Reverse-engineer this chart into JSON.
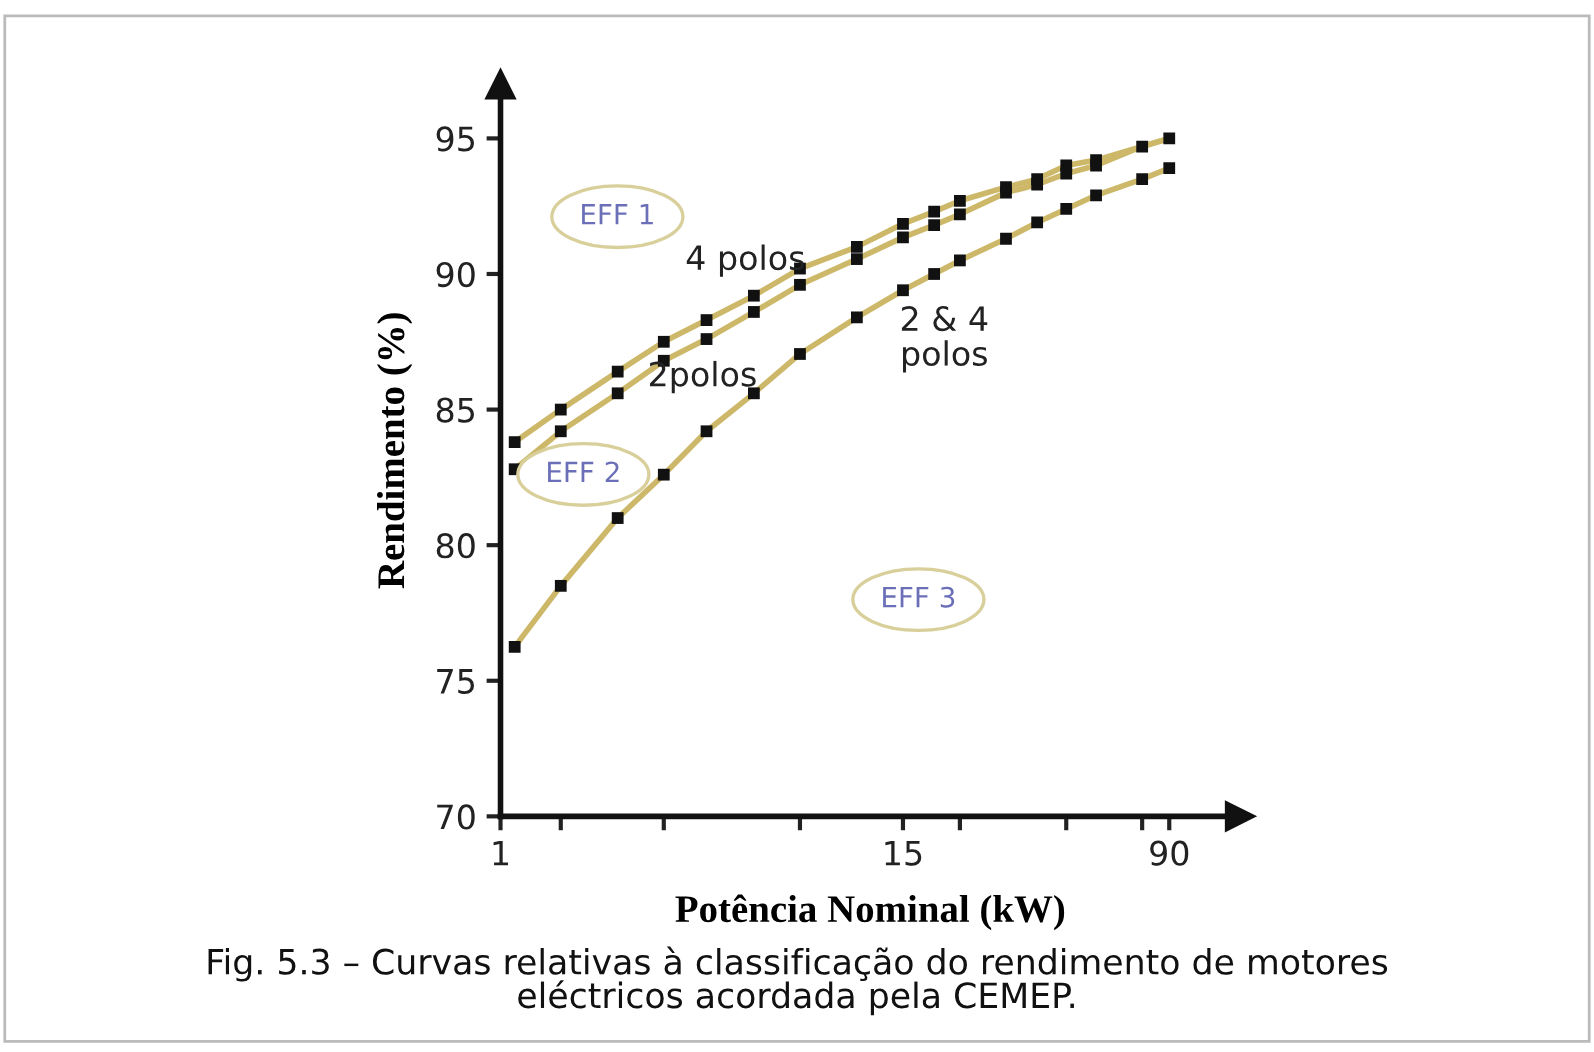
{
  "chart_data": {
    "type": "line",
    "xlabel": "Potência Nominal (kW)",
    "ylabel": "Rendimento (%)",
    "log": "x",
    "xlim": [
      1,
      145
    ],
    "ylim": [
      70,
      97
    ],
    "xticks": [
      1,
      {
        "value": 1.5,
        "label": null
      },
      {
        "value": 3,
        "label": null
      },
      {
        "value": 7.5,
        "label": null
      },
      15,
      {
        "value": 22,
        "label": null
      },
      {
        "value": 45,
        "label": null
      },
      {
        "value": 75,
        "label": null
      },
      90
    ],
    "yticks": [
      70,
      75,
      80,
      85,
      90,
      95
    ],
    "grid": false,
    "x": [
      1.1,
      1.5,
      2.2,
      3,
      4,
      5.5,
      7.5,
      11,
      15,
      18.5,
      22,
      30,
      37,
      45,
      55,
      75,
      90
    ],
    "series": [
      {
        "color": "#cdb86a",
        "marker": "none",
        "values": [
          83.8,
          85.0,
          86.4,
          87.5,
          88.3,
          89.2,
          90.2,
          91.0,
          91.85,
          92.3,
          92.7,
          93.2,
          93.5,
          94.0,
          94.2,
          94.7,
          95.0
        ]
      },
      {
        "color": "#cdb86a",
        "marker": "none",
        "values": [
          82.8,
          84.2,
          85.6,
          86.8,
          87.6,
          88.6,
          89.6,
          90.55,
          91.35,
          91.8,
          92.2,
          93.0,
          93.3,
          93.7,
          94.0,
          94.7,
          95.0
        ]
      },
      {
        "color": "#cdb86a",
        "marker": "none",
        "values": [
          76.25,
          78.5,
          81.0,
          82.6,
          84.2,
          85.6,
          87.05,
          88.4,
          89.4,
          90.0,
          90.5,
          91.3,
          91.9,
          92.4,
          92.9,
          93.5,
          93.9
        ]
      },
      {
        "type": "scatter",
        "color": "#111111",
        "marker": "square",
        "values": [
          83.8,
          85.0,
          86.4,
          87.5,
          88.3,
          89.2,
          90.2,
          91.0,
          91.85,
          92.3,
          92.7,
          93.2,
          93.5,
          94.0,
          94.2,
          94.7,
          95.0
        ]
      },
      {
        "type": "scatter",
        "color": "#111111",
        "marker": "square",
        "values": [
          82.8,
          84.2,
          85.6,
          86.8,
          87.6,
          88.6,
          89.6,
          90.55,
          91.35,
          91.8,
          92.2,
          93.0,
          93.3,
          93.7,
          94.0,
          null,
          null
        ]
      },
      {
        "type": "scatter",
        "color": "#111111",
        "marker": "square",
        "values": [
          76.25,
          78.5,
          81.0,
          82.6,
          84.2,
          85.6,
          87.05,
          88.4,
          89.4,
          90.0,
          90.5,
          91.3,
          91.9,
          92.4,
          92.9,
          93.5,
          93.9
        ]
      }
    ],
    "annotations": [
      "EFF 1",
      "EFF 2",
      "EFF 3",
      "4 polos",
      "2polos",
      "2 & 4\npolos",
      "Fig. 5.3 – Curvas relativas à classificação do rendimento de motores\neléctricos acordada pela CEMEP."
    ]
  }
}
